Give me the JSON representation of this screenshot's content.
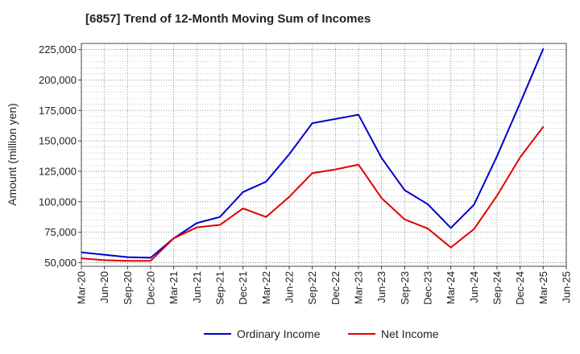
{
  "chart_data": {
    "type": "line",
    "title": "[6857]  Trend of 12-Month Moving Sum of Incomes",
    "xlabel": "",
    "ylabel": "Amount (million yen)",
    "categories": [
      "Mar-20",
      "Jun-20",
      "Sep-20",
      "Dec-20",
      "Mar-21",
      "Jun-21",
      "Sep-21",
      "Dec-21",
      "Mar-22",
      "Jun-22",
      "Sep-22",
      "Dec-22",
      "Mar-23",
      "Jun-23",
      "Sep-23",
      "Dec-23",
      "Mar-24",
      "Jun-24",
      "Sep-24",
      "Dec-24",
      "Mar-25",
      "Jun-25"
    ],
    "yticks": [
      "50,000",
      "75,000",
      "100,000",
      "125,000",
      "150,000",
      "175,000",
      "200,000",
      "225,000"
    ],
    "ylim": [
      47000,
      230000
    ],
    "grid": true,
    "legend_position": "bottom",
    "series": [
      {
        "name": "Ordinary Income",
        "color": "#0000cc",
        "values": [
          58500,
          56500,
          54500,
          54000,
          70000,
          82500,
          87500,
          108000,
          116500,
          139000,
          164500,
          168000,
          171500,
          136000,
          109500,
          98000,
          78500,
          97500,
          137500,
          181000,
          225500,
          null
        ]
      },
      {
        "name": "Net Income",
        "color": "#e00000",
        "values": [
          53500,
          52000,
          51500,
          51500,
          70000,
          79000,
          81000,
          94500,
          87500,
          104000,
          123500,
          126500,
          130500,
          103000,
          85500,
          78000,
          62500,
          77500,
          105000,
          136500,
          161500,
          null
        ]
      }
    ]
  }
}
